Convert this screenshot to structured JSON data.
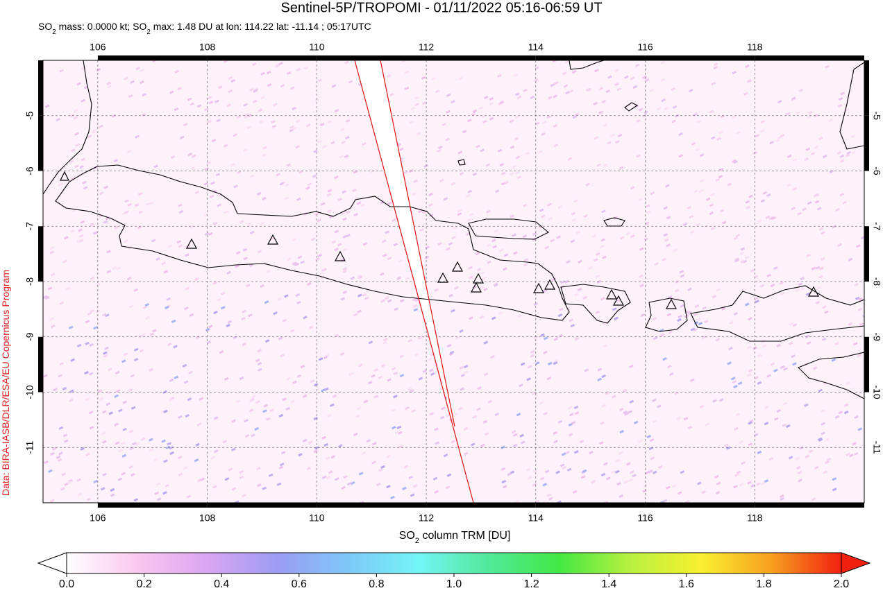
{
  "title": "Sentinel-5P/TROPOMI - 01/11/2022 05:16-06:59 UT",
  "subtitle_parts": [
    "SO",
    "2",
    " mass: 0.0000 kt; SO",
    "2",
    " max: 1.48 DU at lon: 114.22 lat: -11.14 ; 05:17UTC"
  ],
  "credit": "Data: BIRA-IASB/DLR/ESA/EU Copernicus Program",
  "map": {
    "lonlim": [
      105,
      120
    ],
    "latlim": [
      -12,
      -4
    ],
    "xticks": [
      106,
      108,
      110,
      112,
      114,
      116,
      118
    ],
    "yticks": [
      -5,
      -6,
      -7,
      -8,
      -9,
      -10,
      -11
    ],
    "grid": true
  },
  "colorbar": {
    "label_parts": [
      "SO",
      "2",
      " column TRM [DU]"
    ],
    "lim": [
      0,
      2
    ],
    "ticks": [
      {
        "value": 0,
        "label": "0.0"
      },
      {
        "value": 0.2,
        "label": "0.2"
      },
      {
        "value": 0.4,
        "label": "0.4"
      },
      {
        "value": 0.6,
        "label": "0.6"
      },
      {
        "value": 0.8,
        "label": "0.8"
      },
      {
        "value": 1,
        "label": "1.0"
      },
      {
        "value": 1.2,
        "label": "1.2"
      },
      {
        "value": 1.4,
        "label": "1.4"
      },
      {
        "value": 1.6,
        "label": "1.6"
      },
      {
        "value": 1.8,
        "label": "1.8"
      },
      {
        "value": 2,
        "label": "2.0"
      }
    ],
    "colors": [
      "#ffffff",
      "#f9c8ee",
      "#d9a6f2",
      "#9c9cf2",
      "#7fc8f8",
      "#74f5f5",
      "#52e89a",
      "#44e844",
      "#b8f040",
      "#f8f030",
      "#f8a020",
      "#f02010"
    ]
  }
}
